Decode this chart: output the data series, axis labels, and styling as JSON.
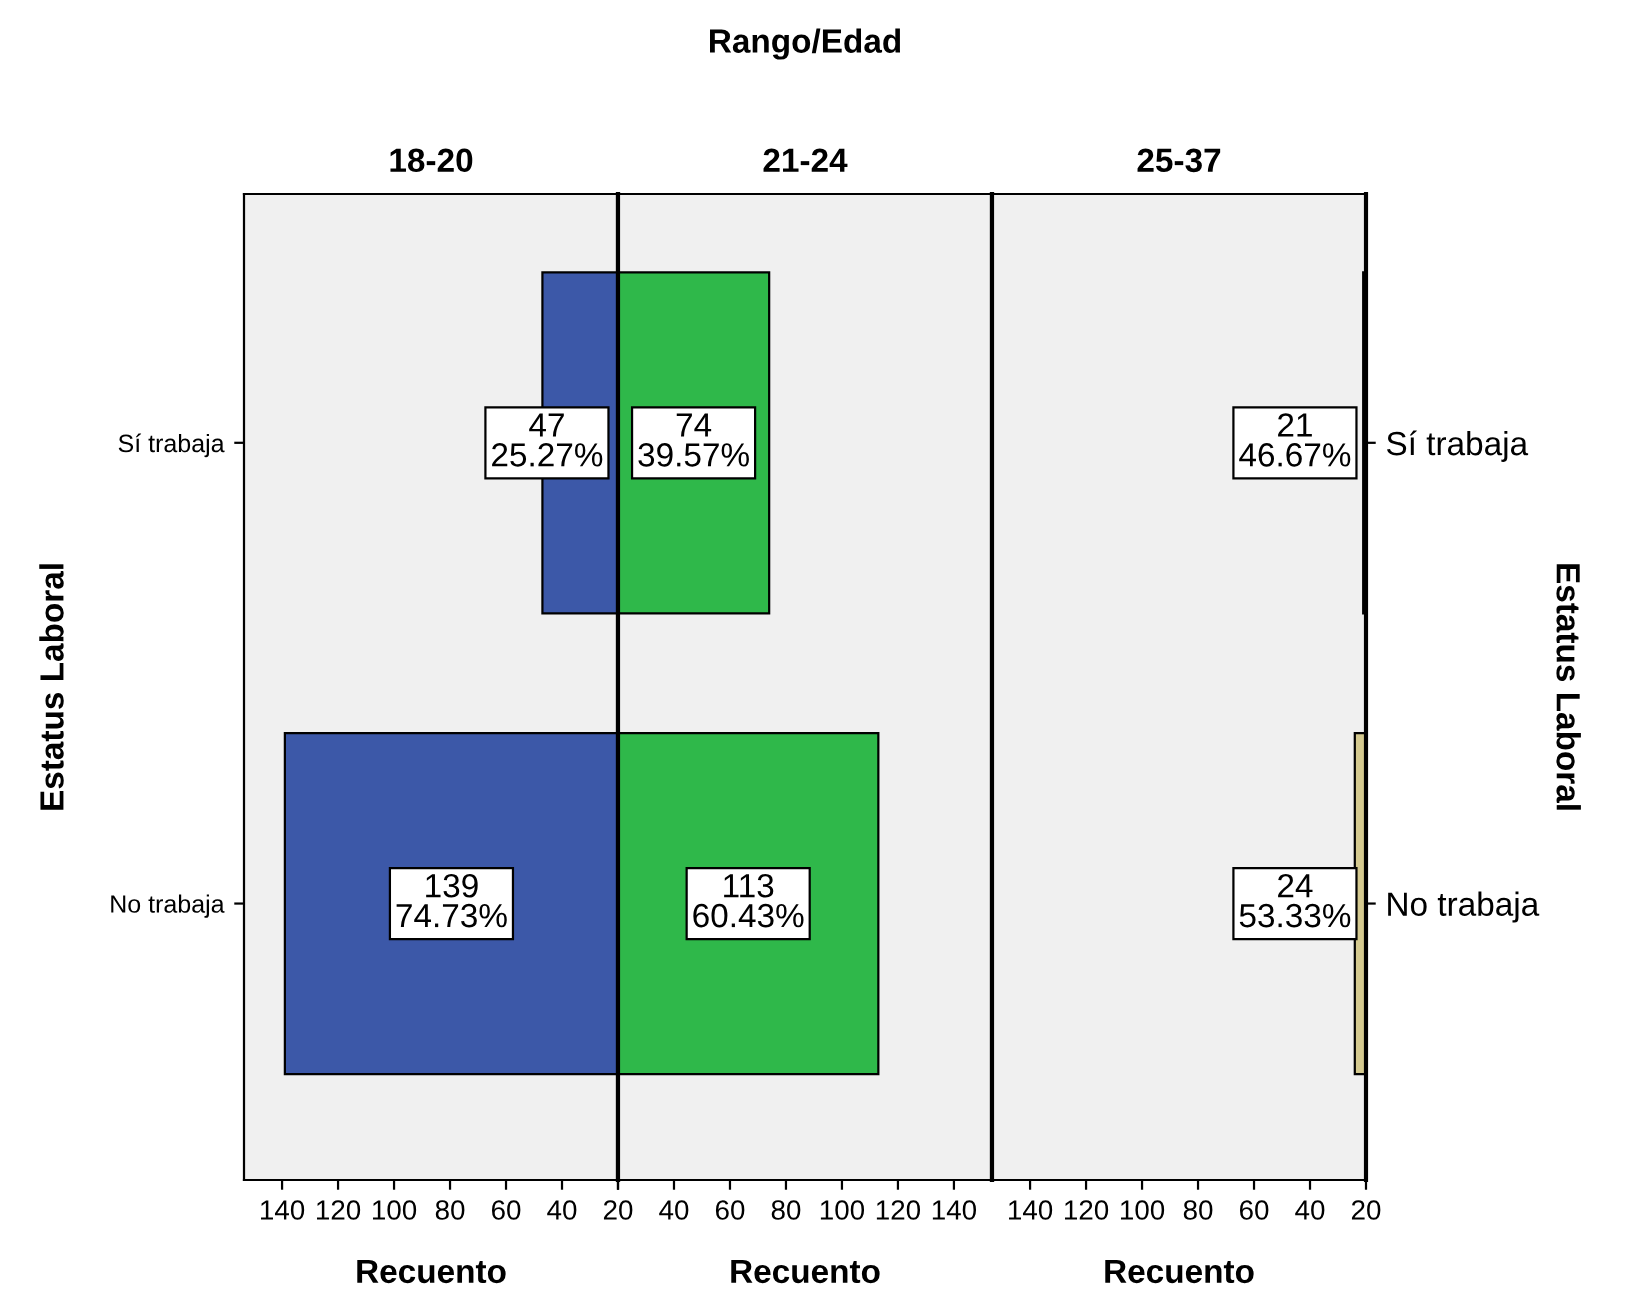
{
  "chart_data": [
    {
      "type": "bar",
      "orientation": "horizontal",
      "title": "18-20",
      "xlabel": "Recuento",
      "ylabel": "Estatus Laboral",
      "annotations": [
        "Rango/Edad"
      ],
      "categories": [
        "Sí trabaja",
        "No trabaja"
      ],
      "values": [
        47,
        139
      ],
      "color": "#3c58a8",
      "value_labels": [
        "47\n25.27%",
        "139\n74.73%"
      ],
      "xlim": [
        153.6,
        20
      ],
      "xticks": [
        140,
        120,
        100,
        80,
        60,
        40,
        {
          "value": 20,
          "label": null
        }
      ],
      "grid": false,
      "legend": false
    },
    {
      "type": "bar",
      "orientation": "horizontal",
      "title": "21-24",
      "xlabel": "Recuento",
      "categories": [
        null,
        null
      ],
      "values": [
        74,
        113
      ],
      "color": "#2fb84a",
      "value_labels": [
        "74\n39.57%",
        "113\n60.43%"
      ],
      "xlim": [
        20,
        153.6
      ],
      "xticks": [
        20,
        40,
        60,
        80,
        100,
        120,
        140
      ],
      "tick_labels": "x",
      "grid": false,
      "legend": false
    },
    {
      "type": "bar",
      "orientation": "horizontal",
      "title": "25-37",
      "xlabel": "Recuento",
      "y2label": "Estatus Laboral",
      "categories": [
        "Sí trabaja",
        "No trabaja"
      ],
      "values": [
        21,
        24
      ],
      "color": "#d4c98f",
      "value_labels": [
        "21\n46.67%",
        "24\n53.33%"
      ],
      "xlim": [
        153.6,
        20
      ],
      "xticks": [
        140,
        120,
        100,
        80,
        60,
        40,
        20
      ],
      "grid": false,
      "legend": false
    }
  ]
}
